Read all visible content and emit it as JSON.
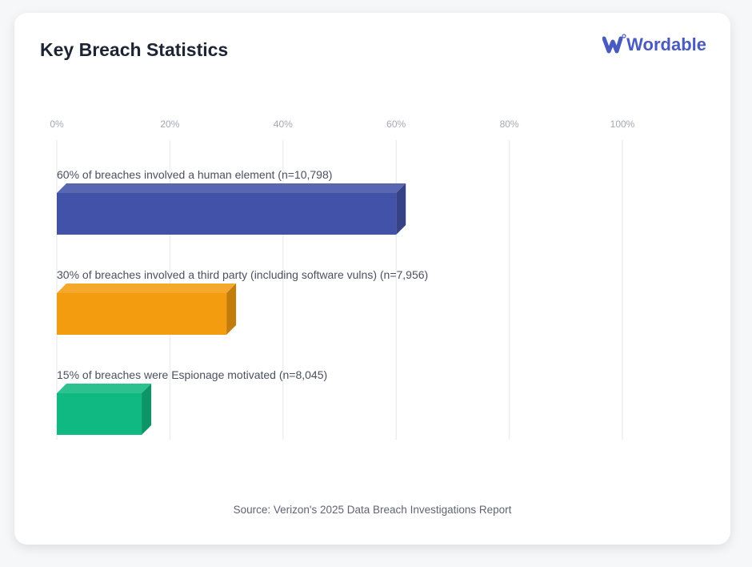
{
  "title": "Key Breach Statistics",
  "logo": {
    "text": "Wordable",
    "color": "#4a5bbf"
  },
  "source": "Source: Verizon's 2025 Data Breach Investigations Report",
  "chart_data": {
    "type": "bar",
    "orientation": "horizontal",
    "style": "3d",
    "xlim": [
      0,
      100
    ],
    "x_ticks": [
      "0%",
      "20%",
      "40%",
      "60%",
      "80%",
      "100%"
    ],
    "grid": true,
    "categories": [
      "60% of breaches involved a human element (n=10,798)",
      "30% of breaches involved a third party (including software vulns) (n=7,956)",
      "15% of breaches were Espionage motivated (n=8,045)"
    ],
    "values": [
      60,
      30,
      15
    ],
    "colors": [
      "#4252a8",
      "#f39c0f",
      "#10b981"
    ]
  }
}
